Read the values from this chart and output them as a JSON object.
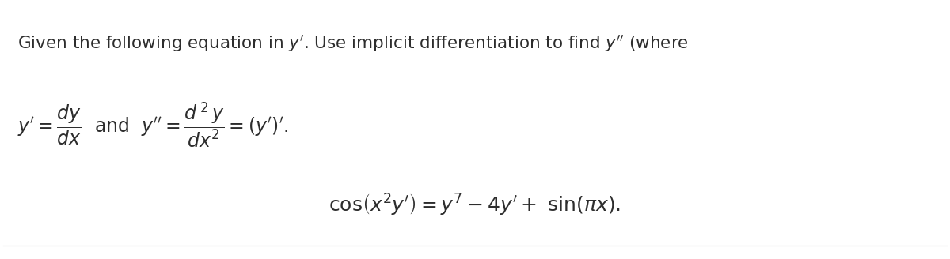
{
  "background_color": "#ffffff",
  "text_color": "#2d2d2d",
  "line1_text": "Given the following equation in $y'$. Use implicit differentiation to find $y''$ (where",
  "fig_width": 12.0,
  "fig_height": 3.28,
  "dpi": 100,
  "font_size_text": 15.5,
  "font_size_eq": 17
}
